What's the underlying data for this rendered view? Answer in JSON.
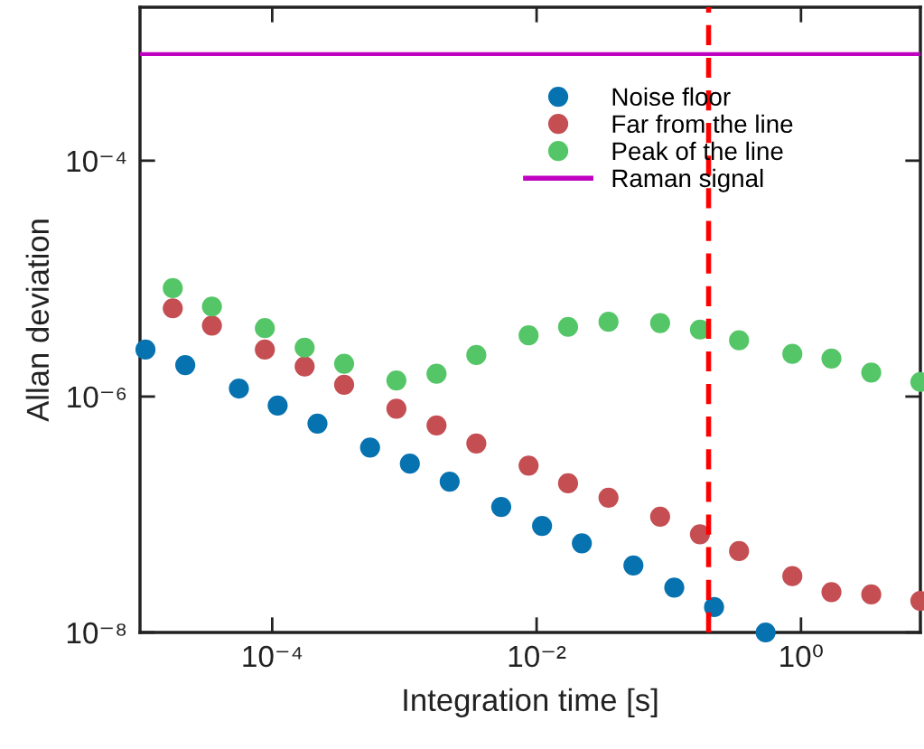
{
  "chart_data": {
    "type": "scatter",
    "xlabel": "Integration time [s]",
    "ylabel": "Allan deviation",
    "log": "xy",
    "grid": false,
    "legend": "top right",
    "marker": "circle",
    "xlim": [
      1e-05,
      8
    ],
    "ylim": [
      1e-08,
      0.002
    ],
    "xticks": [
      {
        "value": 0.0001,
        "label": "10⁻⁴"
      },
      {
        "value": 0.01,
        "label": "10⁻²"
      },
      {
        "value": 1,
        "label": "10⁰"
      }
    ],
    "yticks": [
      {
        "value": 1e-08,
        "label": "10⁻⁸"
      },
      {
        "value": 1e-06,
        "label": "10⁻⁶"
      },
      {
        "value": 0.0001,
        "label": "10⁻⁴"
      }
    ],
    "series": [
      {
        "name": "Noise floor",
        "color": "#0672b0",
        "x": [
          1.1e-05,
          2.2e-05,
          5.6e-05,
          0.00011,
          0.00022,
          0.00055,
          0.0011,
          0.0022,
          0.0054,
          0.011,
          0.022,
          0.054,
          0.11,
          0.22,
          0.54
        ],
        "values": [
          2.5e-06,
          1.85e-06,
          1.17e-06,
          8.4e-07,
          5.9e-07,
          3.7e-07,
          2.7e-07,
          1.9e-07,
          1.16e-07,
          8e-08,
          5.7e-08,
          3.7e-08,
          2.4e-08,
          1.64e-08,
          1e-08
        ]
      },
      {
        "name": "Far from the line",
        "color": "#c44e52",
        "x": [
          1.77e-05,
          3.5e-05,
          8.8e-05,
          0.000176,
          0.00035,
          0.00087,
          0.00175,
          0.0035,
          0.0087,
          0.0173,
          0.035,
          0.086,
          0.172,
          0.34,
          0.86,
          1.7,
          3.4,
          8
        ],
        "values": [
          5.6e-06,
          4e-06,
          2.5e-06,
          1.8e-06,
          1.26e-06,
          7.9e-07,
          5.7e-07,
          4e-07,
          2.6e-07,
          1.84e-07,
          1.39e-07,
          9.6e-08,
          6.8e-08,
          4.9e-08,
          3e-08,
          2.2e-08,
          2.1e-08,
          1.85e-08
        ]
      },
      {
        "name": "Peak of the line",
        "color": "#55c667",
        "x": [
          1.77e-05,
          3.5e-05,
          8.8e-05,
          0.000176,
          0.00035,
          0.00087,
          0.00175,
          0.0035,
          0.0087,
          0.0173,
          0.035,
          0.086,
          0.172,
          0.34,
          0.86,
          1.7,
          3.4,
          8
        ],
        "values": [
          8.3e-06,
          5.8e-06,
          3.8e-06,
          2.6e-06,
          1.9e-06,
          1.37e-06,
          1.56e-06,
          2.25e-06,
          3.3e-06,
          3.9e-06,
          4.3e-06,
          4.2e-06,
          3.7e-06,
          3e-06,
          2.3e-06,
          2.1e-06,
          1.6e-06,
          1.33e-06
        ]
      }
    ],
    "ref_lines": [
      {
        "axis": "y",
        "value": 0.0008,
        "label": "Raman signal",
        "color": "#c000c0",
        "line_style": "solid"
      },
      {
        "axis": "x",
        "value": 0.2,
        "label": null,
        "color": "#ff0000",
        "line_style": "dashed"
      }
    ]
  }
}
